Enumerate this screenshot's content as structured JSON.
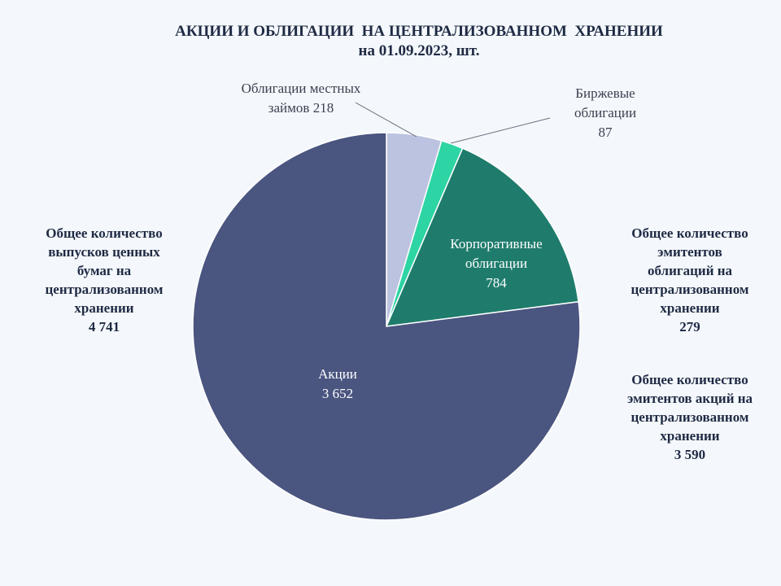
{
  "title": "АКЦИИ И ОБЛИГАЦИИ  НА ЦЕНТРАЛИЗОВАННОМ  ХРАНЕНИИ",
  "subtitle": "на 01.09.2023, шт.",
  "chart_data": {
    "type": "pie",
    "title": "АКЦИИ И ОБЛИГАЦИИ  НА ЦЕНТРАЛИЗОВАННОМ  ХРАНЕНИИ",
    "subtitle": "на 01.09.2023, шт.",
    "slices": [
      {
        "name": "Облигации местных займов",
        "value": 218,
        "value_text": "218",
        "color": "#bcc3e0"
      },
      {
        "name": "Биржевые облигации",
        "value": 87,
        "value_text": "87",
        "color": "#2dd4a4"
      },
      {
        "name": "Корпоративные облигации",
        "value": 784,
        "value_text": "784",
        "color": "#1f7c6c"
      },
      {
        "name": "Акции",
        "value": 3652,
        "value_text": "3 652",
        "color": "#4a5580"
      }
    ],
    "labels": {
      "local": {
        "lines": [
          "Облигации местных",
          "займов 218"
        ]
      },
      "exchange": {
        "lines": [
          "Биржевые",
          "облигации",
          "87"
        ]
      },
      "corporate": {
        "lines": [
          "Корпоративные",
          "облигации",
          "784"
        ]
      },
      "shares": {
        "lines": [
          "Акции",
          "3 652"
        ]
      }
    }
  },
  "side_notes": {
    "total_issues": {
      "lines": [
        "Общее количество",
        "выпусков ценных",
        "бумаг на",
        "централизованном",
        "хранении"
      ],
      "value": "4 741"
    },
    "bond_issuers": {
      "lines": [
        "Общее количество",
        "эмитентов",
        "облигаций на",
        "централизованном",
        "хранении"
      ],
      "value": "279"
    },
    "share_issuers": {
      "lines": [
        "Общее количество",
        "эмитентов акций на",
        "централизованном",
        "хранении"
      ],
      "value": "3 590"
    }
  }
}
